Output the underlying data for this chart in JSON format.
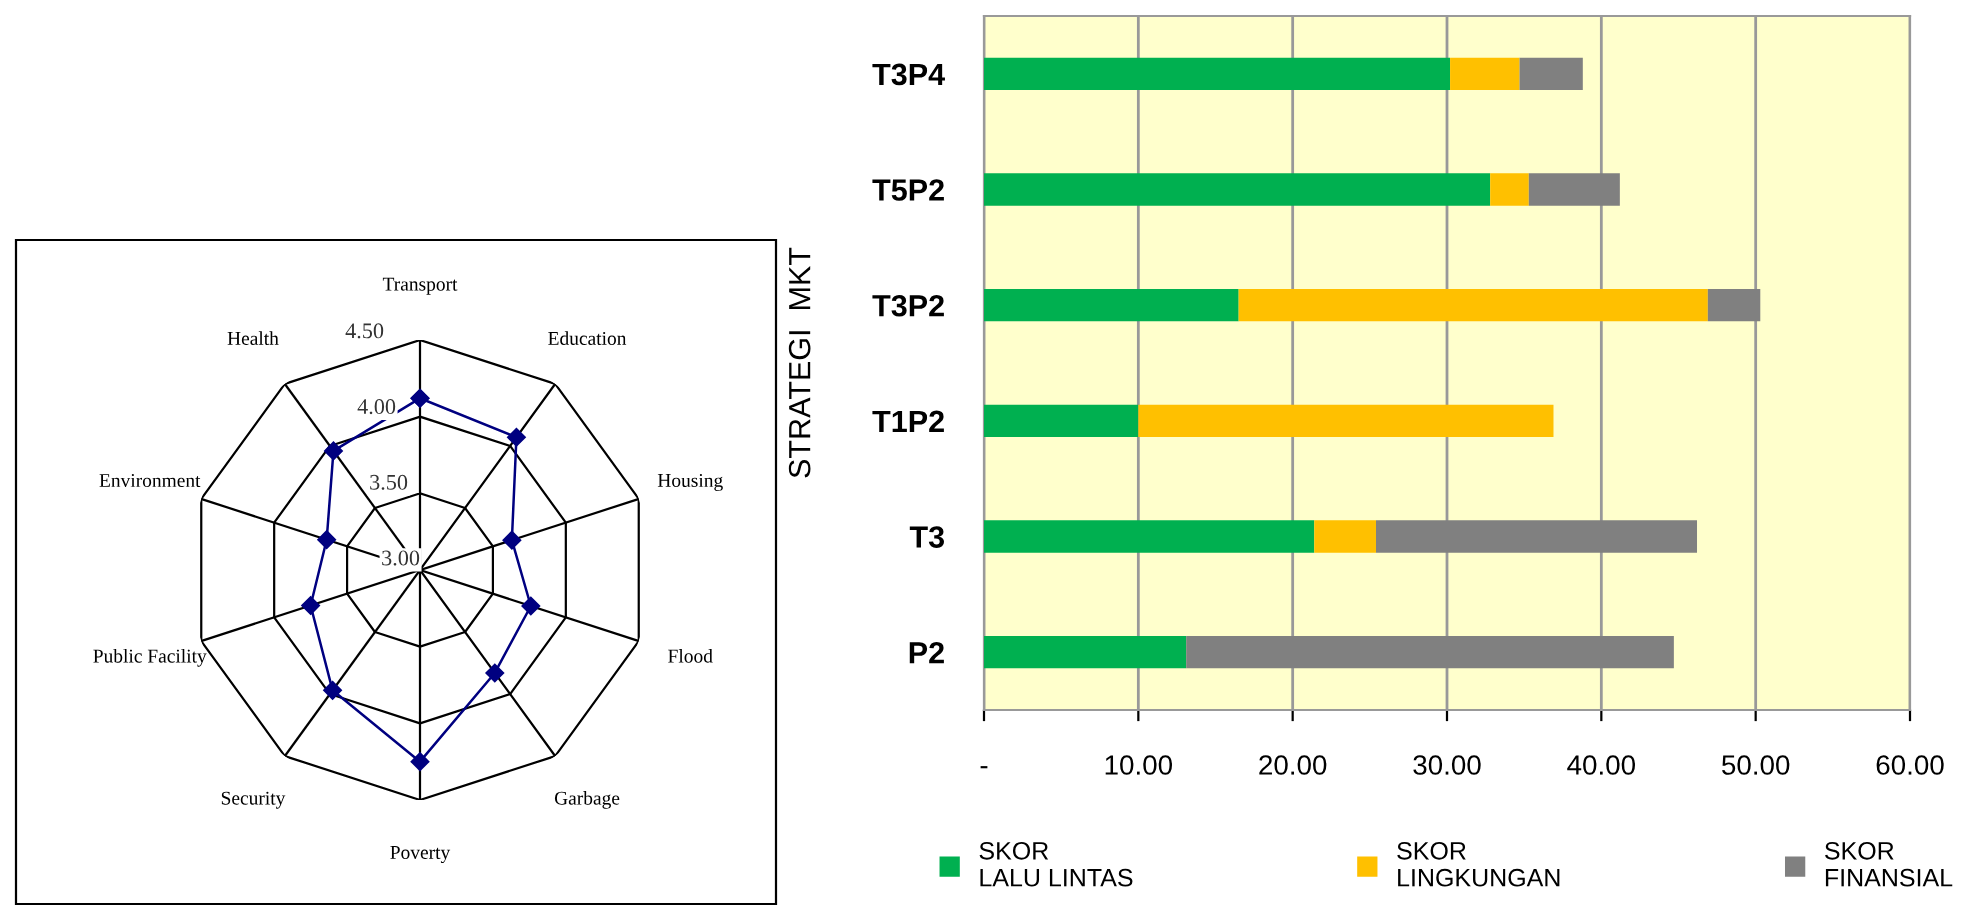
{
  "chart_data": [
    {
      "type": "radar",
      "categories": [
        "Transport",
        "Education",
        "Housing",
        "Flood",
        "Garbage",
        "Poverty",
        "Security",
        "Public Facility",
        "Environment",
        "Health"
      ],
      "series": [
        {
          "color": "#000080",
          "values": [
            4.12,
            4.07,
            3.63,
            3.76,
            3.83,
            4.25,
            3.97,
            3.75,
            3.64,
            3.96
          ]
        }
      ],
      "ylim": [
        3,
        4.5
      ],
      "yticks": [
        {
          "value": 3,
          "label": "3.00"
        },
        {
          "value": 3.5,
          "label": "3.50"
        },
        {
          "value": 4,
          "label": "4.00"
        },
        {
          "value": 4.5,
          "label": "4.50"
        }
      ],
      "grid": true,
      "marker": "diamond",
      "legend": false
    },
    {
      "type": "bar",
      "orientation": "horizontal",
      "stacked": true,
      "categories": [
        "T3P4",
        "T5P2",
        "T3P2",
        "T1P2",
        "T3",
        "P2"
      ],
      "series": [
        {
          "name": "SKOR\nLALU LINTAS",
          "color": "#00b050",
          "values": [
            30.2,
            32.8,
            16.5,
            10.0,
            21.4,
            13.1
          ]
        },
        {
          "name": "SKOR\nLINGKUNGAN",
          "color": "#ffc000",
          "values": [
            4.5,
            2.5,
            30.4,
            26.9,
            4.0,
            null
          ]
        },
        {
          "name": "SKOR\nFINANSIAL",
          "color": "#808080",
          "values": [
            4.1,
            5.9,
            3.4,
            null,
            20.8,
            31.6
          ]
        }
      ],
      "ylabel": "STRATEGI  MKT",
      "xlim": [
        0,
        60
      ],
      "xticks": [
        {
          "value": 0,
          "label": "-"
        },
        {
          "value": 10,
          "label": "10.00"
        },
        {
          "value": 20,
          "label": "20.00"
        },
        {
          "value": 30,
          "label": "30.00"
        },
        {
          "value": 40,
          "label": "40.00"
        },
        {
          "value": 50,
          "label": "50.00"
        },
        {
          "value": 60,
          "label": "60.00"
        }
      ],
      "grid": "x",
      "legend": "bottom"
    }
  ]
}
